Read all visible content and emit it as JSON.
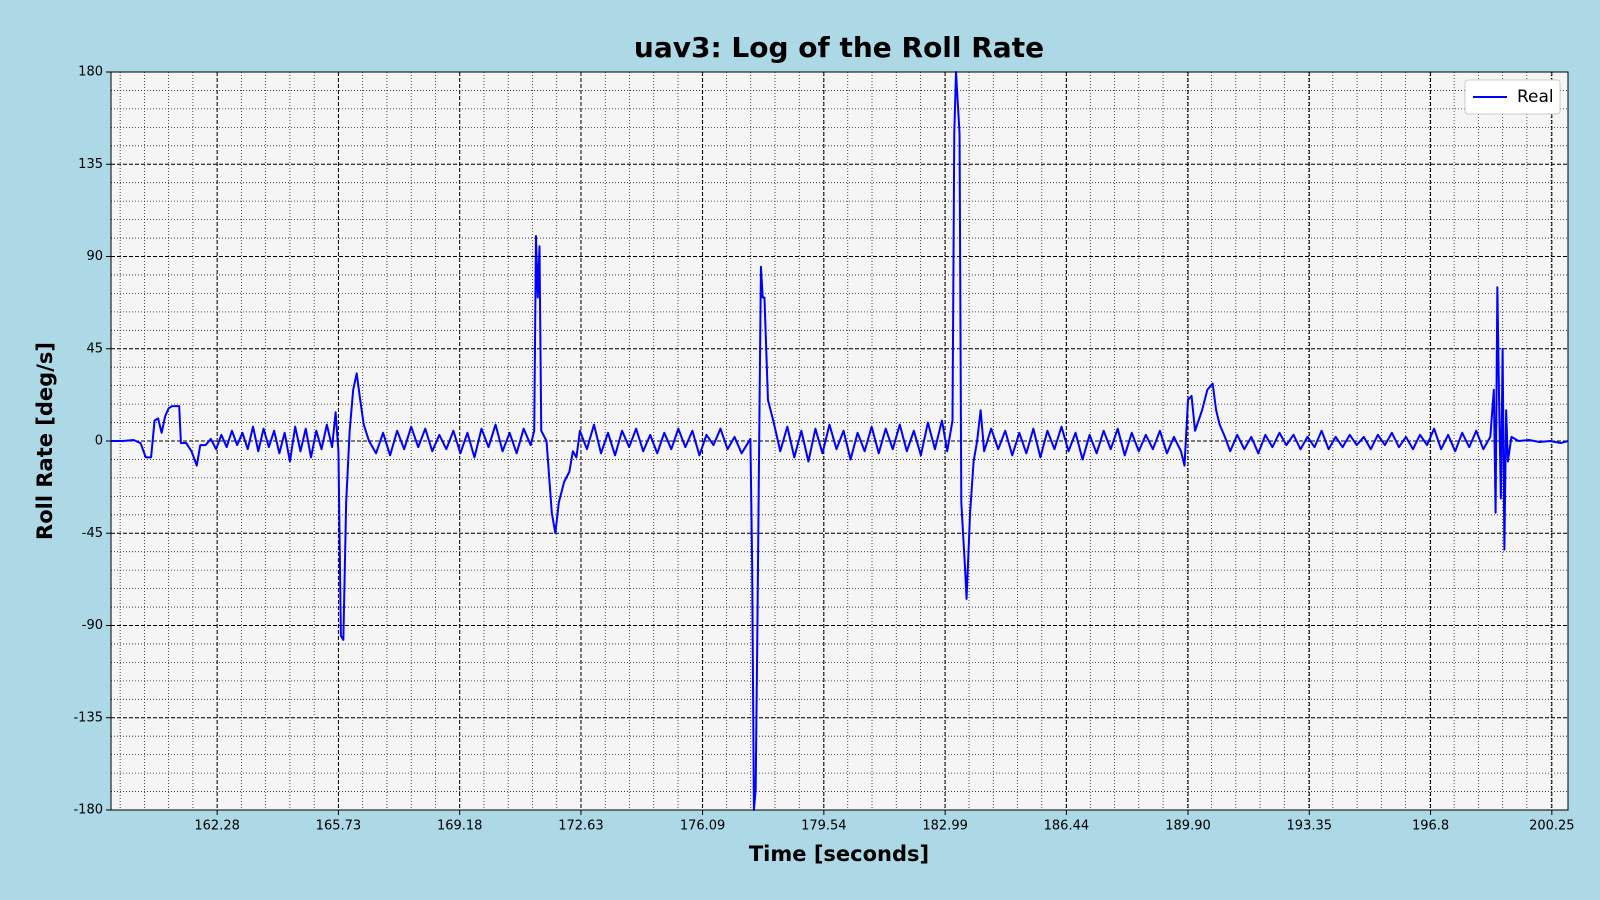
{
  "chart_data": {
    "type": "line",
    "title": "uav3: Log of the Roll Rate",
    "x_label": "Time [seconds]",
    "y_label": "Roll Rate [deg/s]",
    "xlim": [
      159.26,
      200.71
    ],
    "ylim": [
      -180,
      180
    ],
    "xticks": [
      162.28,
      165.73,
      169.18,
      172.63,
      176.09,
      179.54,
      182.99,
      186.44,
      {
        "value": 189.9,
        "label": "189.90"
      },
      193.35,
      196.8,
      200.25
    ],
    "yticks": [
      -180,
      -135,
      -90,
      -45,
      0,
      45,
      90,
      135,
      180
    ],
    "grid": true,
    "minor_grid": true,
    "legend": "upper right",
    "x": [
      159.26,
      159.6,
      159.9,
      160.1,
      160.25,
      160.4,
      160.5,
      160.6,
      160.7,
      160.8,
      160.9,
      161.0,
      161.2,
      161.25,
      161.4,
      161.55,
      161.7,
      161.8,
      161.95,
      162.1,
      162.25,
      162.4,
      162.55,
      162.7,
      162.85,
      163.0,
      163.15,
      163.3,
      163.45,
      163.6,
      163.75,
      163.9,
      164.05,
      164.2,
      164.35,
      164.5,
      164.65,
      164.8,
      164.95,
      165.1,
      165.25,
      165.4,
      165.55,
      165.65,
      165.73,
      165.8,
      165.87,
      165.95,
      166.05,
      166.15,
      166.25,
      166.35,
      166.45,
      166.6,
      166.8,
      167.0,
      167.2,
      167.4,
      167.6,
      167.8,
      168.0,
      168.2,
      168.4,
      168.6,
      168.8,
      169.0,
      169.2,
      169.4,
      169.6,
      169.8,
      170.0,
      170.2,
      170.4,
      170.6,
      170.8,
      171.0,
      171.2,
      171.3,
      171.35,
      171.4,
      171.45,
      171.5,
      171.65,
      171.8,
      171.9,
      172.0,
      172.15,
      172.3,
      172.4,
      172.5,
      172.6,
      172.8,
      173.0,
      173.2,
      173.4,
      173.6,
      173.8,
      174.0,
      174.2,
      174.4,
      174.6,
      174.8,
      175.0,
      175.2,
      175.4,
      175.6,
      175.8,
      176.0,
      176.2,
      176.4,
      176.6,
      176.8,
      177.0,
      177.2,
      177.45,
      177.5,
      177.55,
      177.6,
      177.65,
      177.7,
      177.75,
      177.8,
      177.85,
      177.95,
      178.1,
      178.3,
      178.5,
      178.7,
      178.9,
      179.1,
      179.3,
      179.5,
      179.7,
      179.9,
      180.1,
      180.3,
      180.5,
      180.7,
      180.9,
      181.1,
      181.3,
      181.5,
      181.7,
      181.9,
      182.1,
      182.3,
      182.5,
      182.7,
      182.9,
      183.05,
      183.2,
      183.25,
      183.3,
      183.4,
      183.45,
      183.55,
      183.6,
      183.7,
      183.8,
      183.9,
      184.0,
      184.1,
      184.3,
      184.5,
      184.7,
      184.9,
      185.1,
      185.3,
      185.5,
      185.7,
      185.9,
      186.1,
      186.3,
      186.5,
      186.7,
      186.9,
      187.1,
      187.3,
      187.5,
      187.7,
      187.9,
      188.1,
      188.3,
      188.5,
      188.7,
      188.9,
      189.1,
      189.3,
      189.5,
      189.7,
      189.8,
      189.9,
      190.0,
      190.1,
      190.3,
      190.45,
      190.6,
      190.7,
      190.8,
      190.95,
      191.1,
      191.3,
      191.5,
      191.7,
      191.9,
      192.1,
      192.3,
      192.5,
      192.7,
      192.9,
      193.1,
      193.3,
      193.5,
      193.7,
      193.9,
      194.1,
      194.3,
      194.5,
      194.7,
      194.9,
      195.1,
      195.3,
      195.5,
      195.7,
      195.9,
      196.1,
      196.3,
      196.5,
      196.7,
      196.9,
      197.1,
      197.3,
      197.5,
      197.7,
      197.9,
      198.1,
      198.3,
      198.5,
      198.6,
      198.65,
      198.7,
      198.75,
      198.8,
      198.85,
      198.9,
      198.95,
      199.0,
      199.1,
      199.3,
      199.6,
      199.9,
      200.2,
      200.5,
      200.71
    ],
    "series": [
      {
        "name": "Real",
        "color": "#0000ff",
        "values": [
          0,
          0,
          0.5,
          -1,
          -8,
          -8,
          10,
          11,
          4,
          12,
          16,
          17,
          17,
          -1,
          -1,
          -5,
          -12,
          -2,
          -2,
          1,
          -4,
          3,
          -3,
          5,
          -2,
          4,
          -4,
          7,
          -5,
          6,
          -3,
          5,
          -6,
          4,
          -10,
          7,
          -5,
          6,
          -8,
          5,
          -4,
          8,
          -3,
          14,
          -5,
          -95,
          -97,
          -30,
          5,
          25,
          33,
          20,
          8,
          0,
          -6,
          4,
          -7,
          5,
          -4,
          7,
          -3,
          6,
          -5,
          3,
          -4,
          5,
          -6,
          4,
          -8,
          6,
          -3,
          8,
          -5,
          4,
          -6,
          6,
          -2,
          5,
          100,
          70,
          95,
          5,
          0,
          -35,
          -45,
          -30,
          -20,
          -15,
          -5,
          -8,
          5,
          -4,
          8,
          -6,
          4,
          -7,
          5,
          -3,
          6,
          -5,
          3,
          -6,
          4,
          -4,
          6,
          -3,
          5,
          -7,
          3,
          -2,
          6,
          -4,
          2,
          -6,
          1,
          -60,
          -180,
          -170,
          -90,
          0,
          85,
          70,
          70,
          20,
          10,
          -5,
          7,
          -8,
          5,
          -10,
          6,
          -6,
          8,
          -4,
          5,
          -9,
          4,
          -5,
          7,
          -6,
          6,
          -4,
          8,
          -5,
          5,
          -7,
          9,
          -4,
          10,
          -5,
          10,
          150,
          180,
          150,
          -30,
          -60,
          -77,
          -35,
          -10,
          0,
          15,
          -5,
          6,
          -4,
          5,
          -7,
          4,
          -6,
          6,
          -8,
          5,
          -4,
          7,
          -5,
          4,
          -9,
          3,
          -6,
          5,
          -4,
          6,
          -7,
          4,
          -5,
          3,
          -4,
          5,
          -6,
          2,
          -5,
          -12,
          20,
          22,
          5,
          15,
          25,
          28,
          15,
          8,
          2,
          -5,
          3,
          -4,
          2,
          -6,
          3,
          -3,
          4,
          -2,
          3,
          -4,
          2,
          -3,
          5,
          -4,
          2,
          -3,
          3,
          -2,
          2,
          -4,
          3,
          -2,
          4,
          -3,
          2,
          -4,
          3,
          -2,
          6,
          -4,
          3,
          -5,
          4,
          -3,
          5,
          -4,
          2,
          25,
          -35,
          75,
          20,
          -28,
          45,
          -53,
          15,
          -10,
          2,
          0,
          0.5,
          -0.5,
          0,
          -1,
          0
        ]
      }
    ]
  }
}
